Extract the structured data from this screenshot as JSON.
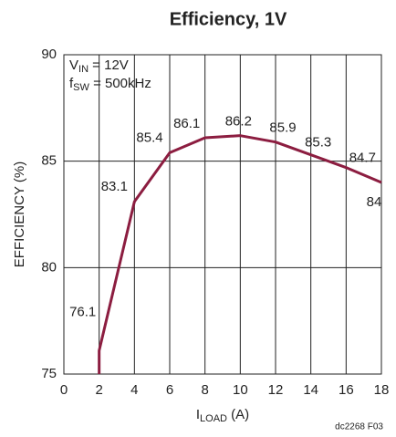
{
  "chart_data": {
    "type": "line",
    "title": "Efficiency, 1V",
    "x": [
      2,
      2,
      4,
      6,
      8,
      10,
      12,
      14,
      16,
      18
    ],
    "series": [
      {
        "color": "#8c1d40",
        "values": [
          75,
          76.1,
          83.1,
          85.4,
          86.1,
          86.2,
          85.9,
          85.3,
          84.7,
          84
        ],
        "value_labels": [
          null,
          "76.1",
          "83.1",
          "85.4",
          "86.1",
          "86.2",
          "85.9",
          "85.3",
          "84.7",
          "84"
        ]
      }
    ],
    "xlim": [
      0,
      18
    ],
    "xticks": [
      0,
      2,
      4,
      6,
      8,
      10,
      12,
      14,
      16,
      18
    ],
    "ylim": [
      75,
      90
    ],
    "yticks": [
      75,
      80,
      85,
      90
    ],
    "grid": true,
    "ylabel": "EFFICIENCY (%)",
    "xlabel": {
      "main": "I",
      "sub": "LOAD",
      "rest": " (A)"
    },
    "annotations": [
      {
        "main": "V",
        "sub": "IN",
        "rest": " = 12V"
      },
      {
        "main": "f",
        "sub": "SW",
        "rest": " = 500kHz"
      }
    ],
    "footnote": "dc2268 F03"
  }
}
